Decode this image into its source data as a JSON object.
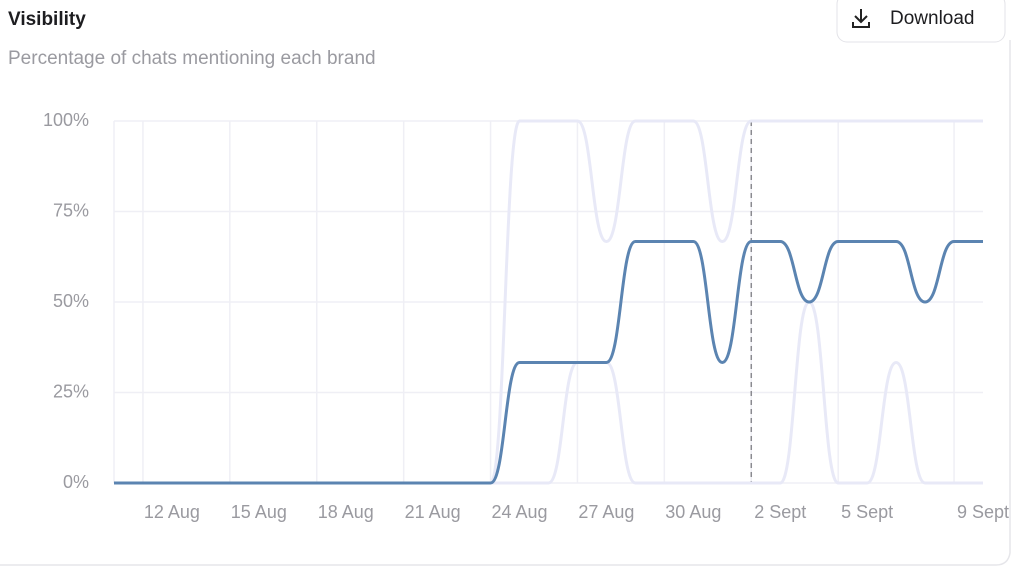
{
  "actions": {
    "download": "Download"
  },
  "chart_data": {
    "type": "line",
    "title": "Visibility",
    "subtitle": "Percentage of chats mentioning each brand",
    "categories": [
      null,
      null,
      "12 Aug",
      null,
      null,
      "15 Aug",
      null,
      null,
      "18 Aug",
      null,
      null,
      "21 Aug",
      null,
      null,
      "24 Aug",
      null,
      null,
      "27 Aug",
      null,
      null,
      "30 Aug",
      null,
      null,
      "2 Sept",
      null,
      null,
      "5 Sept",
      null,
      null,
      null,
      "9 Sept"
    ],
    "series": [
      {
        "color": "#e8e9f7",
        "values": [
          0,
          0,
          0,
          0,
          0,
          0,
          0,
          0,
          0,
          0,
          0,
          0,
          0,
          0,
          100,
          100,
          100,
          66.7,
          100,
          100,
          100,
          66.7,
          100,
          100,
          100,
          100,
          100,
          100,
          100,
          100,
          100
        ]
      },
      {
        "color": "#e8e9f7",
        "values": [
          0,
          0,
          0,
          0,
          0,
          0,
          0,
          0,
          0,
          0,
          0,
          0,
          0,
          0,
          0,
          0,
          33.3,
          33.3,
          0,
          0,
          0,
          0,
          0,
          0,
          50,
          0,
          0,
          33.3,
          0,
          0,
          0
        ]
      },
      {
        "color": "#5b84b1",
        "values": [
          0,
          0,
          0,
          0,
          0,
          0,
          0,
          0,
          0,
          0,
          0,
          0,
          0,
          0,
          33.3,
          33.3,
          33.3,
          33.3,
          66.7,
          66.7,
          66.7,
          33.3,
          66.7,
          66.7,
          50,
          66.7,
          66.7,
          66.7,
          50,
          66.7,
          66.7
        ]
      }
    ],
    "ylim": [
      0,
      100
    ],
    "yticks": [
      {
        "value": 0,
        "label": "0%"
      },
      {
        "value": 25,
        "label": "25%"
      },
      {
        "value": 50,
        "label": "50%"
      },
      {
        "value": 75,
        "label": "75%"
      },
      {
        "value": 100,
        "label": "100%"
      }
    ],
    "grid": true
  }
}
